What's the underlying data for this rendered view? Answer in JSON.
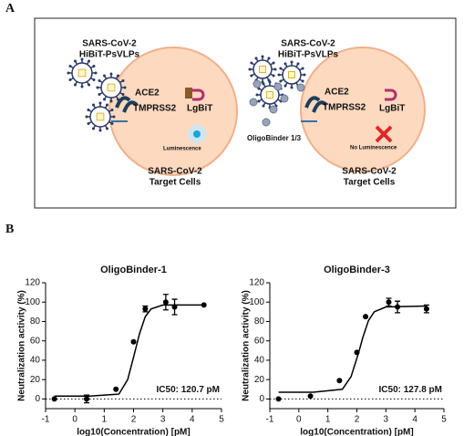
{
  "panel_labels": [
    "A",
    "B"
  ],
  "diagram": {
    "left": {
      "virus_label": [
        "SARS-CoV-2",
        "HiBiT-PsVLPs"
      ],
      "receptor_labels": [
        "ACE2",
        "TMPRSS2"
      ],
      "enzyme_label": "LgBiT",
      "signal_label": "Luminescence",
      "cell_label": [
        "SARS-CoV-2",
        "Target Cells"
      ]
    },
    "right": {
      "virus_label": [
        "SARS-CoV-2",
        "HiBiT-PsVLPs"
      ],
      "binder_label": "OligoBinder 1/3",
      "receptor_labels": [
        "ACE2",
        "TMPRSS2"
      ],
      "enzyme_label": "LgBiT",
      "signal_label": "No Luminescence",
      "cell_label": [
        "SARS-CoV-2",
        "Target Cells"
      ]
    }
  },
  "chart_data": [
    {
      "type": "dose-response",
      "title": "OligoBinder-1",
      "x_label": "log10(Concentration) [pM]",
      "y_label": "Neutralization activity (%)",
      "annotation": "IC50: 120.7 pM",
      "xlim": [
        -1,
        5
      ],
      "xticks": [
        -1,
        0,
        1,
        2,
        3,
        4,
        5
      ],
      "ylim": [
        -10,
        120
      ],
      "yticks": [
        0,
        20,
        40,
        60,
        80,
        100,
        120
      ],
      "zero_line": true,
      "color": "#000000",
      "points": {
        "x": [
          -0.7,
          0.4,
          1.4,
          2.0,
          2.4,
          3.1,
          3.4,
          4.4
        ],
        "values": [
          0,
          0,
          10,
          59,
          93,
          100,
          95,
          97
        ],
        "errors": [
          null,
          4,
          null,
          null,
          3,
          8,
          8,
          null
        ]
      },
      "fit": {
        "x": [
          -0.7,
          0.5,
          1.5,
          1.8,
          2.0,
          2.1,
          2.2,
          2.4,
          2.6,
          3.0,
          4.4
        ],
        "values": [
          3,
          3,
          5,
          20,
          43,
          55,
          67,
          85,
          93,
          97,
          97
        ]
      }
    },
    {
      "type": "dose-response",
      "title": "OligoBinder-3",
      "x_label": "log10(Concentration) [pM]",
      "y_label": "Neutralization activity (%)",
      "annotation": "IC50: 127.8 pM",
      "xlim": [
        -1,
        5
      ],
      "xticks": [
        -1,
        0,
        1,
        2,
        3,
        4,
        5
      ],
      "ylim": [
        -10,
        120
      ],
      "yticks": [
        0,
        20,
        40,
        60,
        80,
        100,
        120
      ],
      "zero_line": true,
      "color": "#000000",
      "points": {
        "x": [
          -0.7,
          0.4,
          1.4,
          2.0,
          2.3,
          3.1,
          3.4,
          4.4
        ],
        "values": [
          0,
          3,
          19,
          48,
          85,
          100,
          95,
          93
        ],
        "errors": [
          null,
          null,
          null,
          null,
          null,
          4,
          6,
          4
        ]
      },
      "fit": {
        "x": [
          -0.7,
          0.5,
          1.5,
          1.8,
          2.0,
          2.1,
          2.2,
          2.4,
          2.6,
          3.0,
          4.4
        ],
        "values": [
          7,
          7,
          10,
          23,
          42,
          52,
          63,
          81,
          90,
          95,
          96
        ]
      }
    }
  ]
}
